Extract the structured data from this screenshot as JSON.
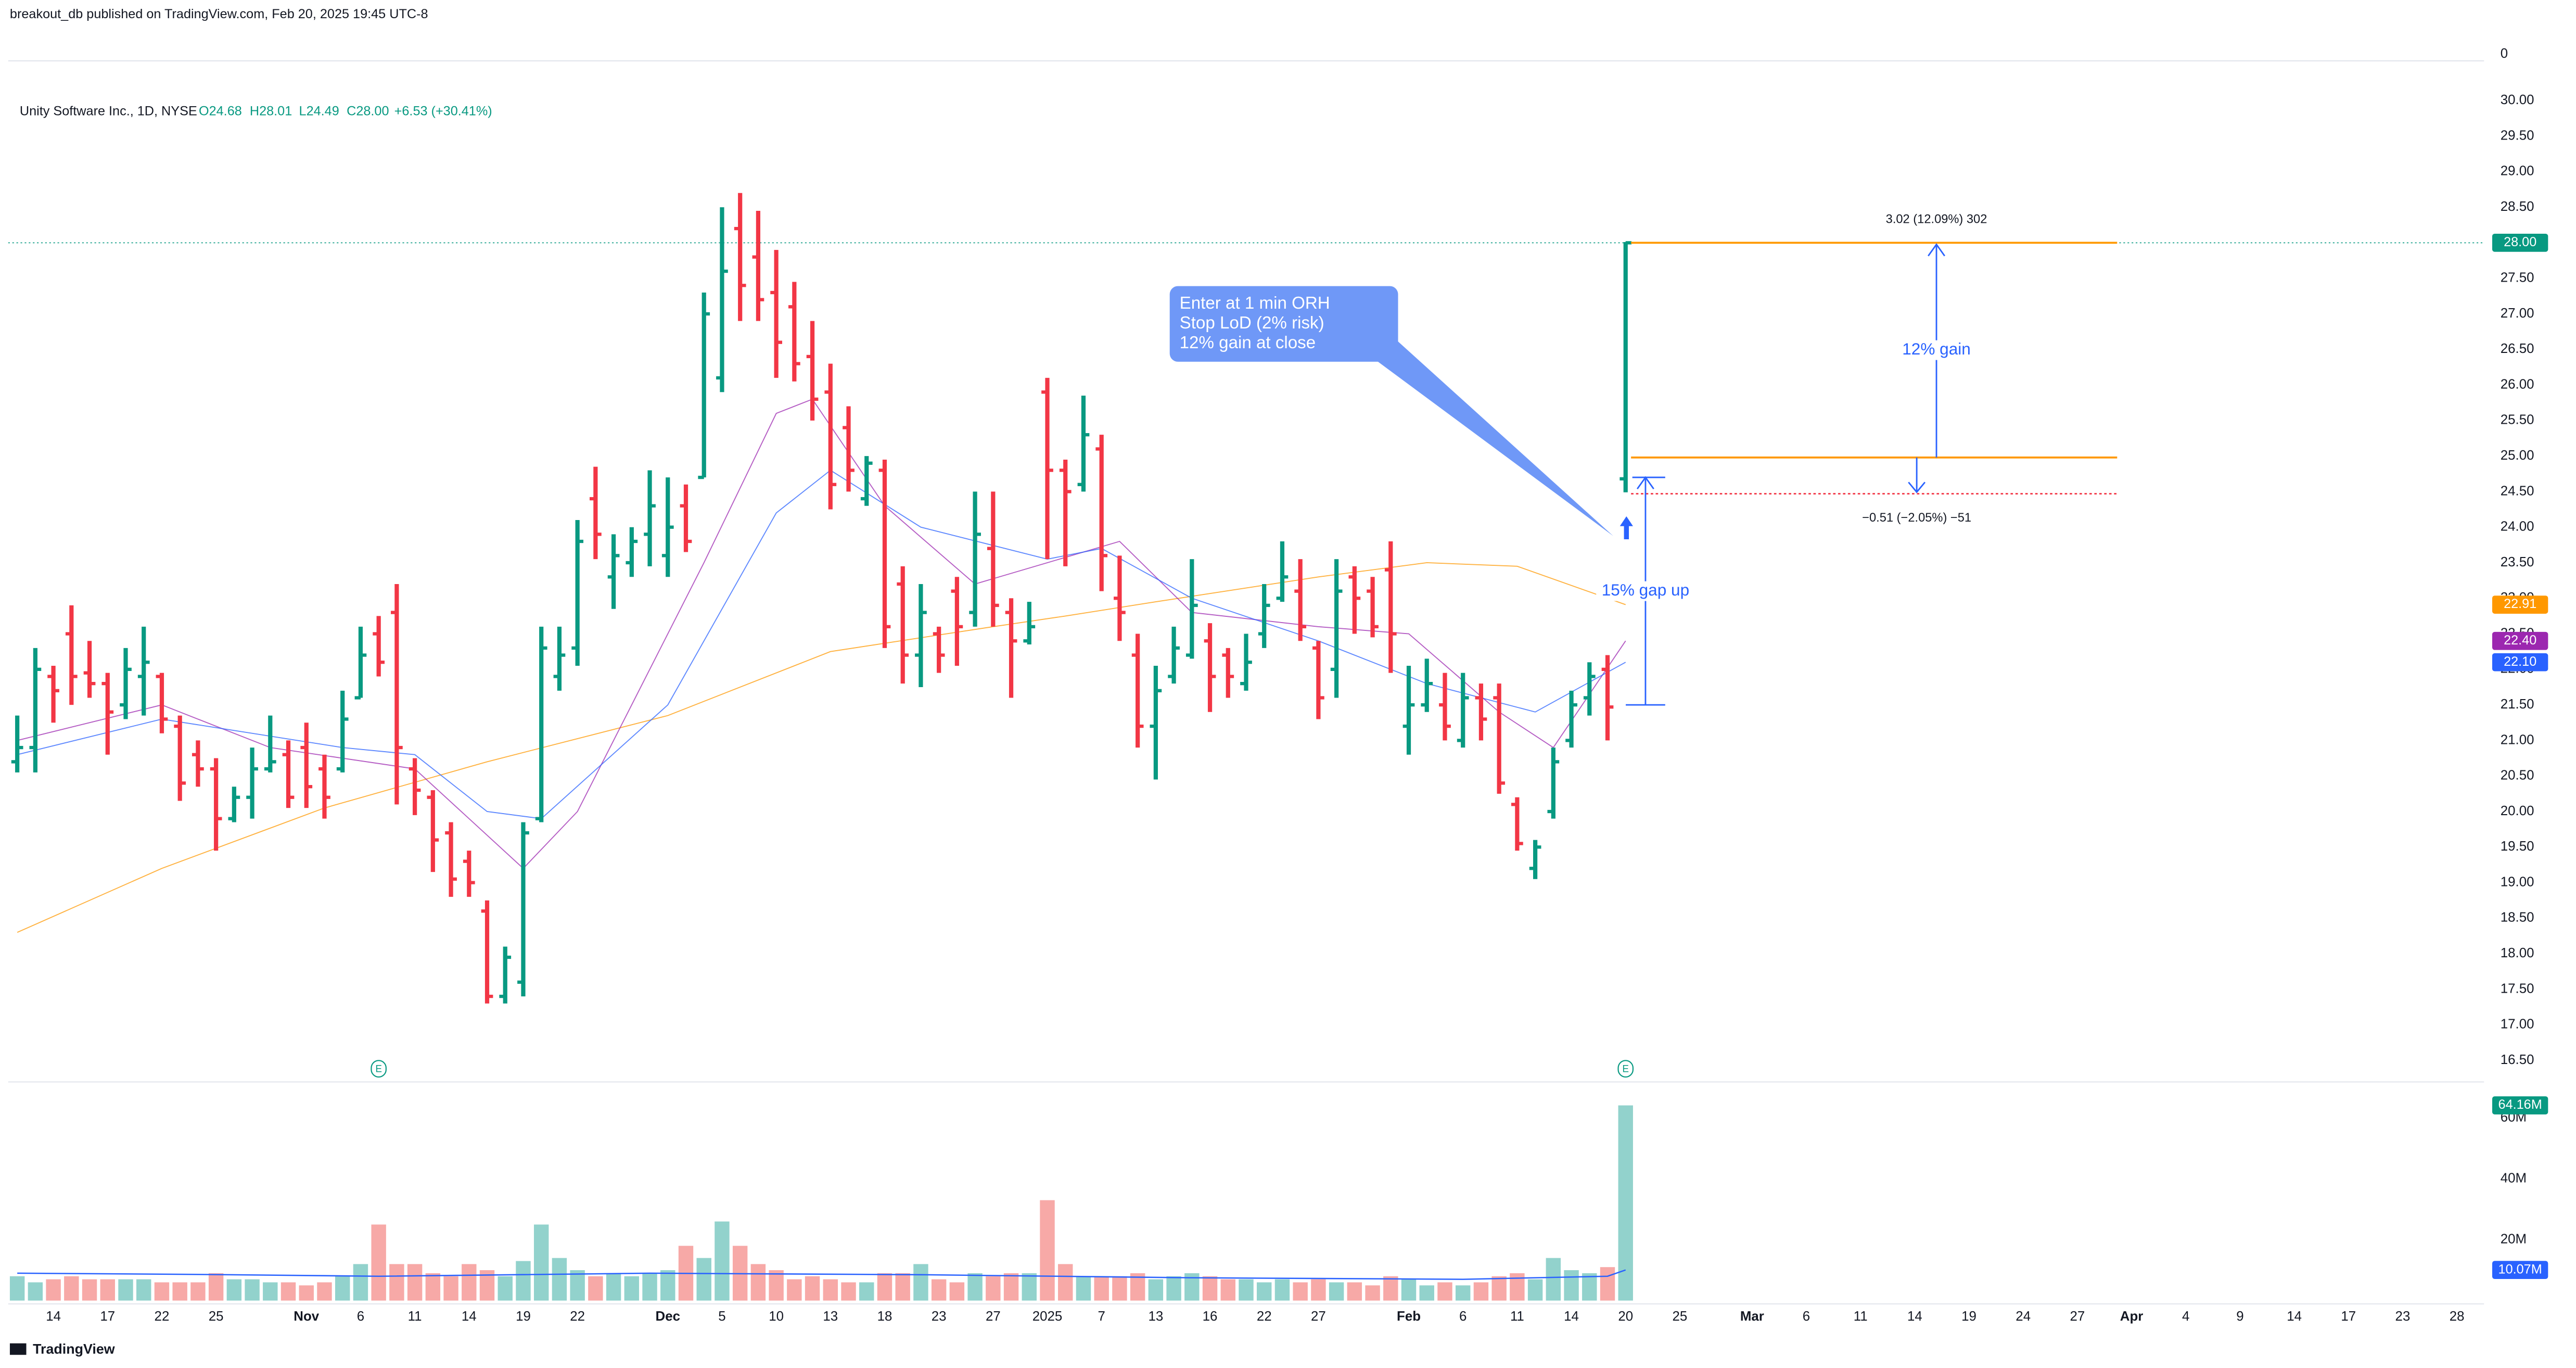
{
  "header": {
    "published": "breakout_db published on TradingView.com, Feb 20, 2025 19:45 UTC-8",
    "top_pane_label": "0",
    "footer": "TradingView"
  },
  "chart_data": {
    "type": "ohlc",
    "legend": {
      "symbol": "Unity Software Inc., 1D, NYSE",
      "open": "O24.68",
      "high": "H28.01",
      "low": "L24.49",
      "close": "C28.00",
      "change": "+6.53 (+30.41%)"
    },
    "open": [
      20.7,
      20.9,
      21.9,
      22.5,
      21.95,
      21.8,
      21.5,
      21.9,
      21.9,
      21.2,
      20.8,
      20.6,
      19.9,
      20.2,
      20.6,
      20.8,
      20.9,
      20.6,
      20.6,
      21.6,
      22.5,
      22.8,
      20.6,
      20.2,
      19.7,
      19.3,
      18.6,
      17.4,
      17.6,
      19.9,
      21.9,
      22.3,
      24.4,
      23.3,
      23.5,
      23.9,
      23.6,
      24.3,
      24.7,
      26.1,
      28.2,
      27.8,
      27.3,
      27.1,
      26.4,
      25.9,
      25.4,
      24.4,
      24.8,
      23.2,
      22.2,
      22.5,
      23.1,
      22.8,
      23.7,
      22.8,
      22.4,
      25.9,
      24.8,
      24.6,
      25.1,
      23.0,
      22.2,
      21.2,
      21.9,
      22.2,
      22.4,
      22.2,
      21.8,
      22.5,
      23.0,
      23.1,
      22.3,
      22.0,
      23.3,
      23.1,
      23.4,
      21.2,
      21.5,
      21.5,
      21.0,
      21.6,
      21.6,
      20.1,
      19.2,
      20.0,
      21.0,
      21.6,
      22.0,
      24.68
    ],
    "high": [
      21.35,
      22.3,
      22.05,
      22.9,
      22.4,
      21.95,
      22.3,
      22.6,
      21.95,
      21.35,
      21.0,
      20.75,
      20.35,
      20.9,
      21.35,
      21.0,
      21.25,
      20.8,
      21.7,
      22.6,
      22.75,
      23.2,
      20.75,
      20.3,
      19.85,
      19.45,
      18.75,
      18.1,
      19.85,
      22.6,
      22.6,
      24.1,
      24.85,
      23.9,
      24.0,
      24.8,
      24.7,
      24.6,
      27.3,
      28.5,
      28.7,
      28.45,
      27.9,
      27.45,
      26.9,
      26.3,
      25.7,
      25.0,
      24.95,
      23.45,
      23.2,
      22.6,
      23.3,
      24.5,
      24.5,
      23.0,
      22.95,
      26.1,
      24.95,
      25.85,
      25.3,
      23.6,
      22.5,
      22.05,
      22.6,
      23.55,
      22.65,
      22.3,
      22.5,
      23.2,
      23.8,
      23.55,
      22.4,
      23.55,
      23.45,
      23.3,
      23.8,
      22.05,
      22.15,
      21.95,
      21.95,
      21.8,
      21.8,
      20.2,
      19.6,
      20.9,
      21.7,
      22.1,
      22.2,
      28.01
    ],
    "low": [
      20.55,
      20.55,
      21.25,
      21.5,
      21.6,
      20.8,
      21.3,
      21.35,
      21.1,
      20.15,
      20.35,
      19.45,
      19.85,
      19.9,
      20.55,
      20.05,
      20.05,
      19.9,
      20.55,
      21.6,
      21.9,
      20.1,
      19.95,
      19.15,
      18.8,
      18.8,
      17.3,
      17.3,
      17.4,
      19.85,
      21.7,
      22.05,
      23.55,
      22.85,
      23.3,
      23.45,
      23.3,
      23.65,
      24.7,
      25.9,
      26.9,
      26.9,
      26.1,
      26.05,
      25.5,
      24.25,
      24.5,
      24.3,
      22.3,
      21.8,
      21.75,
      21.95,
      22.05,
      22.6,
      22.6,
      21.6,
      22.35,
      23.55,
      23.45,
      24.5,
      23.1,
      22.4,
      20.9,
      20.45,
      21.8,
      22.15,
      21.4,
      21.6,
      21.7,
      22.3,
      22.95,
      22.4,
      21.3,
      21.6,
      22.5,
      22.45,
      21.95,
      20.8,
      21.4,
      21.0,
      20.9,
      21.0,
      20.25,
      19.45,
      19.05,
      19.9,
      20.9,
      21.35,
      21.0,
      24.49
    ],
    "close": [
      20.9,
      22.0,
      21.7,
      21.9,
      21.8,
      21.4,
      22.0,
      22.1,
      21.3,
      20.4,
      20.6,
      19.9,
      20.2,
      20.6,
      20.7,
      20.2,
      20.35,
      20.2,
      21.3,
      22.2,
      22.1,
      20.9,
      20.3,
      19.6,
      19.05,
      19.0,
      17.4,
      17.95,
      19.7,
      22.3,
      22.2,
      23.8,
      23.9,
      23.6,
      23.8,
      24.3,
      24.0,
      23.8,
      27.0,
      27.6,
      27.4,
      27.2,
      26.6,
      26.3,
      25.8,
      24.6,
      24.8,
      24.9,
      22.6,
      22.2,
      22.8,
      22.2,
      22.6,
      23.9,
      22.9,
      22.4,
      22.6,
      24.8,
      24.5,
      25.3,
      23.6,
      22.8,
      21.2,
      21.7,
      22.3,
      22.9,
      21.9,
      21.9,
      22.1,
      22.9,
      23.3,
      22.6,
      21.6,
      23.1,
      23.0,
      22.6,
      22.5,
      21.5,
      21.8,
      21.2,
      21.6,
      21.3,
      20.4,
      19.55,
      19.5,
      20.7,
      21.5,
      21.9,
      21.47,
      28.0
    ],
    "up_color": "#089981",
    "down_color": "#f23645",
    "last_price_label": "28.00",
    "xlim": [
      -0.5,
      136.5
    ],
    "xticks": [
      {
        "value": 2,
        "label": "14"
      },
      {
        "value": 5,
        "label": "17"
      },
      {
        "value": 8,
        "label": "22"
      },
      {
        "value": 11,
        "label": "25"
      },
      {
        "value": 16,
        "label": "Nov"
      },
      {
        "value": 19,
        "label": "6"
      },
      {
        "value": 22,
        "label": "11"
      },
      {
        "value": 25,
        "label": "14"
      },
      {
        "value": 28,
        "label": "19"
      },
      {
        "value": 31,
        "label": "22"
      },
      {
        "value": 36,
        "label": "Dec"
      },
      {
        "value": 39,
        "label": "5"
      },
      {
        "value": 42,
        "label": "10"
      },
      {
        "value": 45,
        "label": "13"
      },
      {
        "value": 48,
        "label": "18"
      },
      {
        "value": 51,
        "label": "23"
      },
      {
        "value": 54,
        "label": "27"
      },
      {
        "value": 57,
        "label": "2025"
      },
      {
        "value": 60,
        "label": "7"
      },
      {
        "value": 63,
        "label": "13"
      },
      {
        "value": 66,
        "label": "16"
      },
      {
        "value": 69,
        "label": "22"
      },
      {
        "value": 72,
        "label": "27"
      },
      {
        "value": 77,
        "label": "Feb"
      },
      {
        "value": 80,
        "label": "6"
      },
      {
        "value": 83,
        "label": "11"
      },
      {
        "value": 86,
        "label": "14"
      },
      {
        "value": 89,
        "label": "20"
      },
      {
        "value": 92,
        "label": "25"
      },
      {
        "value": 96,
        "label": "Mar"
      },
      {
        "value": 99,
        "label": "6"
      },
      {
        "value": 102,
        "label": "11"
      },
      {
        "value": 105,
        "label": "14"
      },
      {
        "value": 108,
        "label": "19"
      },
      {
        "value": 111,
        "label": "24"
      },
      {
        "value": 114,
        "label": "27"
      },
      {
        "value": 117,
        "label": "Apr"
      },
      {
        "value": 120,
        "label": "4"
      },
      {
        "value": 123,
        "label": "9"
      },
      {
        "value": 126,
        "label": "14"
      },
      {
        "value": 129,
        "label": "17"
      },
      {
        "value": 132,
        "label": "23"
      },
      {
        "value": 135,
        "label": "28"
      }
    ],
    "ylim": [
      16.22,
      30.49
    ],
    "yticks": [
      {
        "value": 16.5,
        "label": "16.50"
      },
      {
        "value": 17,
        "label": "17.00"
      },
      {
        "value": 17.5,
        "label": "17.50"
      },
      {
        "value": 18,
        "label": "18.00"
      },
      {
        "value": 18.5,
        "label": "18.50"
      },
      {
        "value": 19,
        "label": "19.00"
      },
      {
        "value": 19.5,
        "label": "19.50"
      },
      {
        "value": 20,
        "label": "20.00"
      },
      {
        "value": 20.5,
        "label": "20.50"
      },
      {
        "value": 21,
        "label": "21.00"
      },
      {
        "value": 21.5,
        "label": "21.50"
      },
      {
        "value": 22,
        "label": "22.00"
      },
      {
        "value": 22.5,
        "label": "22.50"
      },
      {
        "value": 23,
        "label": "23.00"
      },
      {
        "value": 23.5,
        "label": "23.50"
      },
      {
        "value": 24,
        "label": "24.00"
      },
      {
        "value": 24.5,
        "label": "24.50"
      },
      {
        "value": 25,
        "label": "25.00"
      },
      {
        "value": 25.5,
        "label": "25.50"
      },
      {
        "value": 26,
        "label": "26.00"
      },
      {
        "value": 26.5,
        "label": "26.50"
      },
      {
        "value": 27,
        "label": "27.00"
      },
      {
        "value": 27.5,
        "label": "27.50"
      },
      {
        "value": 28,
        "label": "28.00"
      },
      {
        "value": 28.5,
        "label": "28.50"
      },
      {
        "value": 29,
        "label": "29.00"
      },
      {
        "value": 29.5,
        "label": "29.50"
      },
      {
        "value": 30,
        "label": "30.00"
      }
    ],
    "moving_averages": [
      {
        "color": "#ff9800",
        "x": [
          0,
          8,
          17,
          26,
          36,
          45,
          54,
          58,
          63,
          72,
          78,
          83,
          89
        ],
        "values": [
          18.3,
          19.2,
          20.05,
          20.7,
          21.35,
          22.25,
          22.6,
          22.75,
          22.95,
          23.3,
          23.5,
          23.45,
          22.91
        ],
        "value_label": "22.91"
      },
      {
        "color": "#9c27b0",
        "x": [
          0,
          8,
          14,
          22,
          28,
          31,
          38,
          42,
          44,
          48,
          53,
          57,
          61,
          65,
          72,
          77,
          82,
          85,
          89
        ],
        "values": [
          21.0,
          21.5,
          20.9,
          20.6,
          19.2,
          20.0,
          23.5,
          25.6,
          25.8,
          24.3,
          23.2,
          23.5,
          23.8,
          22.8,
          22.6,
          22.5,
          21.4,
          20.9,
          22.4
        ],
        "value_label": "22.40"
      },
      {
        "color": "#2962ff",
        "x": [
          0,
          8,
          18,
          22,
          26,
          29,
          36,
          42,
          45,
          50,
          57,
          60,
          65,
          72,
          78,
          84,
          89
        ],
        "values": [
          20.8,
          21.3,
          20.9,
          20.8,
          20.0,
          19.9,
          21.5,
          24.2,
          24.8,
          24.0,
          23.55,
          23.7,
          23.0,
          22.4,
          21.8,
          21.4,
          22.1
        ],
        "value_label": "22.10"
      }
    ],
    "earnings": [
      {
        "x": 20,
        "label": "E"
      },
      {
        "x": 89,
        "label": "E"
      }
    ],
    "volume": {
      "values": [
        8,
        6,
        7,
        8,
        7,
        7,
        7,
        7,
        6,
        6,
        6,
        9,
        7,
        7,
        6,
        6,
        5,
        6,
        8,
        12,
        25,
        12,
        12,
        9,
        8,
        12,
        10,
        8,
        13,
        25,
        14,
        10,
        8,
        9,
        8,
        9,
        10,
        18,
        14,
        26,
        18,
        12,
        10,
        7,
        8,
        7,
        6,
        6,
        9,
        9,
        12,
        7,
        6,
        9,
        8,
        9,
        9,
        33,
        12,
        8,
        8,
        8,
        9,
        7,
        8,
        9,
        8,
        7,
        7,
        6,
        7,
        6,
        7,
        6,
        6,
        5,
        8,
        7,
        5,
        6,
        5,
        6,
        8,
        9,
        7,
        14,
        10,
        9,
        11,
        64.16
      ],
      "value_labels_last": "64.16M",
      "up_color": "#92d2cc",
      "down_color": "#f7a9a7",
      "ylim": [
        0,
        70.8
      ],
      "yticks": [
        {
          "value": 20,
          "label": "20M"
        },
        {
          "value": 40,
          "label": "40M"
        },
        {
          "value": 60,
          "label": "60M"
        }
      ],
      "ma": {
        "color": "#2962ff",
        "x": [
          0,
          10,
          20,
          35,
          50,
          65,
          80,
          88,
          89
        ],
        "values": [
          9.0,
          8.6,
          8.0,
          9.0,
          8.5,
          7.5,
          7.0,
          8.0,
          10.07
        ],
        "value_label": "10.07M"
      }
    },
    "annotations": {
      "callout": {
        "lines": [
          "Enter at 1 min ORH",
          "Stop LoD (2% risk)",
          "12% gain at close"
        ]
      },
      "position": {
        "x0": 89.3,
        "x1": 116.2,
        "target": 28.0,
        "entry": 24.98,
        "stop": 24.47,
        "arrow_x": 106.2,
        "target_label": "3.02 (12.09%) 302",
        "stop_label": "−0.51 (−2.05%) −51",
        "gain_label": "12% gain",
        "line_color": "#ff9800",
        "stop_color": "#f23645"
      },
      "gap": {
        "x": 90.1,
        "from": 21.5,
        "to": 24.7,
        "label": "15% gap up"
      }
    }
  }
}
